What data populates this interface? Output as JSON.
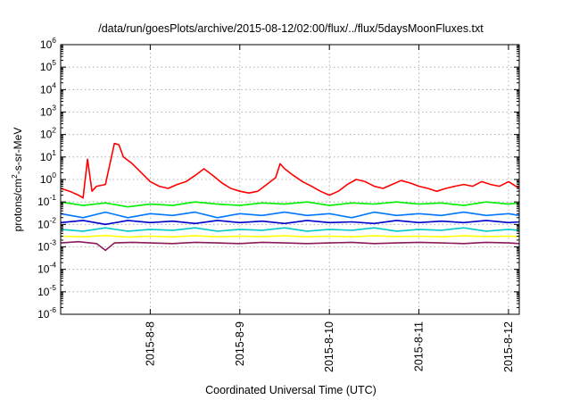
{
  "chart_data": {
    "type": "line",
    "title": "/data/run/goesPlots/archive/2015-08-12/02:00/flux/../flux/5daysMoonFluxes.txt",
    "xlabel": "Coordinated Universal Time (UTC)",
    "ylabel": {
      "base": "protons/cm",
      "sup": "2",
      "rest": "-s-sr-MeV"
    },
    "yscale": "log",
    "ylim_exp": [
      -6,
      6
    ],
    "yticks": [
      {
        "base": "10",
        "exp": "6",
        "value_exp": 6
      },
      {
        "base": "10",
        "exp": "5",
        "value_exp": 5
      },
      {
        "base": "10",
        "exp": "4",
        "value_exp": 4
      },
      {
        "base": "10",
        "exp": "3",
        "value_exp": 3
      },
      {
        "base": "10",
        "exp": "2",
        "value_exp": 2
      },
      {
        "base": "10",
        "exp": "1",
        "value_exp": 1
      },
      {
        "base": "10",
        "exp": "0",
        "value_exp": 0
      },
      {
        "base": "10",
        "exp": "-1",
        "value_exp": -1
      },
      {
        "base": "10",
        "exp": "-2",
        "value_exp": -2
      },
      {
        "base": "10",
        "exp": "-3",
        "value_exp": -3
      },
      {
        "base": "10",
        "exp": "-4",
        "value_exp": -4
      },
      {
        "base": "10",
        "exp": "-5",
        "value_exp": -5
      },
      {
        "base": "10",
        "exp": "-6",
        "value_exp": -6
      }
    ],
    "xlim_days": [
      7.0,
      12.12
    ],
    "xticks": [
      {
        "label": "2015-8-8",
        "day": 8
      },
      {
        "label": "2015-8-9",
        "day": 9
      },
      {
        "label": "2015-8-10",
        "day": 10
      },
      {
        "label": "2015-8-11",
        "day": 11
      },
      {
        "label": "2015-8-12",
        "day": 12
      }
    ],
    "grid": true,
    "series": [
      {
        "color": "#ff0000",
        "points": [
          [
            7.0,
            0.4
          ],
          [
            7.1,
            0.3
          ],
          [
            7.2,
            0.2
          ],
          [
            7.25,
            0.15
          ],
          [
            7.3,
            8
          ],
          [
            7.35,
            0.3
          ],
          [
            7.4,
            0.5
          ],
          [
            7.5,
            0.6
          ],
          [
            7.6,
            40
          ],
          [
            7.65,
            35
          ],
          [
            7.7,
            10
          ],
          [
            7.8,
            5
          ],
          [
            7.9,
            2
          ],
          [
            8.0,
            0.8
          ],
          [
            8.1,
            0.5
          ],
          [
            8.2,
            0.4
          ],
          [
            8.3,
            0.6
          ],
          [
            8.4,
            0.8
          ],
          [
            8.5,
            1.5
          ],
          [
            8.6,
            3
          ],
          [
            8.7,
            1.5
          ],
          [
            8.8,
            0.7
          ],
          [
            8.9,
            0.4
          ],
          [
            9.0,
            0.3
          ],
          [
            9.1,
            0.25
          ],
          [
            9.2,
            0.3
          ],
          [
            9.3,
            0.6
          ],
          [
            9.4,
            1.2
          ],
          [
            9.45,
            5
          ],
          [
            9.5,
            3
          ],
          [
            9.6,
            1.5
          ],
          [
            9.7,
            0.8
          ],
          [
            9.8,
            0.5
          ],
          [
            9.9,
            0.3
          ],
          [
            10.0,
            0.2
          ],
          [
            10.1,
            0.3
          ],
          [
            10.2,
            0.6
          ],
          [
            10.3,
            1.0
          ],
          [
            10.4,
            0.8
          ],
          [
            10.5,
            0.5
          ],
          [
            10.6,
            0.4
          ],
          [
            10.7,
            0.6
          ],
          [
            10.8,
            0.9
          ],
          [
            10.9,
            0.7
          ],
          [
            11.0,
            0.5
          ],
          [
            11.1,
            0.4
          ],
          [
            11.2,
            0.3
          ],
          [
            11.3,
            0.4
          ],
          [
            11.4,
            0.5
          ],
          [
            11.5,
            0.6
          ],
          [
            11.6,
            0.5
          ],
          [
            11.7,
            0.8
          ],
          [
            11.8,
            0.6
          ],
          [
            11.9,
            0.5
          ],
          [
            12.0,
            0.8
          ],
          [
            12.05,
            0.6
          ],
          [
            12.12,
            0.4
          ]
        ]
      },
      {
        "color": "#00ee00",
        "points": [
          [
            7.0,
            0.1
          ],
          [
            7.25,
            0.07
          ],
          [
            7.5,
            0.09
          ],
          [
            7.75,
            0.06
          ],
          [
            8.0,
            0.08
          ],
          [
            8.25,
            0.07
          ],
          [
            8.5,
            0.1
          ],
          [
            8.75,
            0.08
          ],
          [
            9.0,
            0.07
          ],
          [
            9.25,
            0.09
          ],
          [
            9.5,
            0.08
          ],
          [
            9.75,
            0.1
          ],
          [
            10.0,
            0.07
          ],
          [
            10.25,
            0.09
          ],
          [
            10.5,
            0.08
          ],
          [
            10.75,
            0.1
          ],
          [
            11.0,
            0.08
          ],
          [
            11.25,
            0.09
          ],
          [
            11.5,
            0.07
          ],
          [
            11.75,
            0.1
          ],
          [
            12.0,
            0.08
          ],
          [
            12.12,
            0.09
          ]
        ]
      },
      {
        "color": "#0077ff",
        "points": [
          [
            7.0,
            0.03
          ],
          [
            7.25,
            0.02
          ],
          [
            7.5,
            0.035
          ],
          [
            7.75,
            0.02
          ],
          [
            8.0,
            0.03
          ],
          [
            8.25,
            0.025
          ],
          [
            8.5,
            0.035
          ],
          [
            8.75,
            0.02
          ],
          [
            9.0,
            0.03
          ],
          [
            9.25,
            0.025
          ],
          [
            9.5,
            0.035
          ],
          [
            9.75,
            0.025
          ],
          [
            10.0,
            0.03
          ],
          [
            10.25,
            0.02
          ],
          [
            10.5,
            0.035
          ],
          [
            10.75,
            0.025
          ],
          [
            11.0,
            0.03
          ],
          [
            11.25,
            0.025
          ],
          [
            11.5,
            0.035
          ],
          [
            11.75,
            0.025
          ],
          [
            12.0,
            0.03
          ],
          [
            12.12,
            0.025
          ]
        ]
      },
      {
        "color": "#0000cc",
        "points": [
          [
            7.0,
            0.012
          ],
          [
            7.25,
            0.015
          ],
          [
            7.5,
            0.01
          ],
          [
            7.75,
            0.015
          ],
          [
            8.0,
            0.012
          ],
          [
            8.25,
            0.014
          ],
          [
            8.5,
            0.011
          ],
          [
            8.75,
            0.015
          ],
          [
            9.0,
            0.012
          ],
          [
            9.25,
            0.014
          ],
          [
            9.5,
            0.011
          ],
          [
            9.75,
            0.015
          ],
          [
            10.0,
            0.012
          ],
          [
            10.25,
            0.013
          ],
          [
            10.5,
            0.011
          ],
          [
            10.75,
            0.015
          ],
          [
            11.0,
            0.012
          ],
          [
            11.25,
            0.014
          ],
          [
            11.5,
            0.012
          ],
          [
            11.75,
            0.015
          ],
          [
            12.0,
            0.012
          ],
          [
            12.12,
            0.013
          ]
        ]
      },
      {
        "color": "#00c8c8",
        "points": [
          [
            7.0,
            0.006
          ],
          [
            7.25,
            0.005
          ],
          [
            7.5,
            0.007
          ],
          [
            7.75,
            0.005
          ],
          [
            8.0,
            0.006
          ],
          [
            8.25,
            0.0055
          ],
          [
            8.5,
            0.007
          ],
          [
            8.75,
            0.005
          ],
          [
            9.0,
            0.006
          ],
          [
            9.25,
            0.0055
          ],
          [
            9.5,
            0.007
          ],
          [
            9.75,
            0.005
          ],
          [
            10.0,
            0.006
          ],
          [
            10.25,
            0.0055
          ],
          [
            10.5,
            0.007
          ],
          [
            10.75,
            0.005
          ],
          [
            11.0,
            0.006
          ],
          [
            11.25,
            0.0055
          ],
          [
            11.5,
            0.007
          ],
          [
            11.75,
            0.005
          ],
          [
            12.0,
            0.006
          ],
          [
            12.12,
            0.0055
          ]
        ]
      },
      {
        "color": "#ffff00",
        "points": [
          [
            7.0,
            0.003
          ],
          [
            7.25,
            0.0028
          ],
          [
            7.5,
            0.0032
          ],
          [
            7.75,
            0.0027
          ],
          [
            8.0,
            0.003
          ],
          [
            8.25,
            0.0028
          ],
          [
            8.5,
            0.0031
          ],
          [
            8.75,
            0.0028
          ],
          [
            9.0,
            0.003
          ],
          [
            9.25,
            0.0029
          ],
          [
            9.5,
            0.0031
          ],
          [
            9.75,
            0.0028
          ],
          [
            10.0,
            0.003
          ],
          [
            10.25,
            0.0028
          ],
          [
            10.5,
            0.0031
          ],
          [
            10.75,
            0.0029
          ],
          [
            11.0,
            0.003
          ],
          [
            11.25,
            0.0028
          ],
          [
            11.5,
            0.0031
          ],
          [
            11.75,
            0.0029
          ],
          [
            12.0,
            0.003
          ],
          [
            12.12,
            0.0029
          ]
        ]
      },
      {
        "color": "#8b1a5a",
        "points": [
          [
            7.0,
            0.0015
          ],
          [
            7.2,
            0.0017
          ],
          [
            7.4,
            0.0014
          ],
          [
            7.5,
            0.0007
          ],
          [
            7.6,
            0.0015
          ],
          [
            7.8,
            0.0016
          ],
          [
            8.0,
            0.0015
          ],
          [
            8.25,
            0.0014
          ],
          [
            8.5,
            0.0016
          ],
          [
            8.75,
            0.0015
          ],
          [
            9.0,
            0.0014
          ],
          [
            9.25,
            0.0016
          ],
          [
            9.5,
            0.0015
          ],
          [
            9.75,
            0.0014
          ],
          [
            10.0,
            0.0015
          ],
          [
            10.25,
            0.0016
          ],
          [
            10.5,
            0.0014
          ],
          [
            10.75,
            0.0015
          ],
          [
            11.0,
            0.0016
          ],
          [
            11.25,
            0.0015
          ],
          [
            11.5,
            0.0014
          ],
          [
            11.75,
            0.0016
          ],
          [
            12.0,
            0.0015
          ],
          [
            12.12,
            0.0014
          ]
        ]
      }
    ]
  }
}
